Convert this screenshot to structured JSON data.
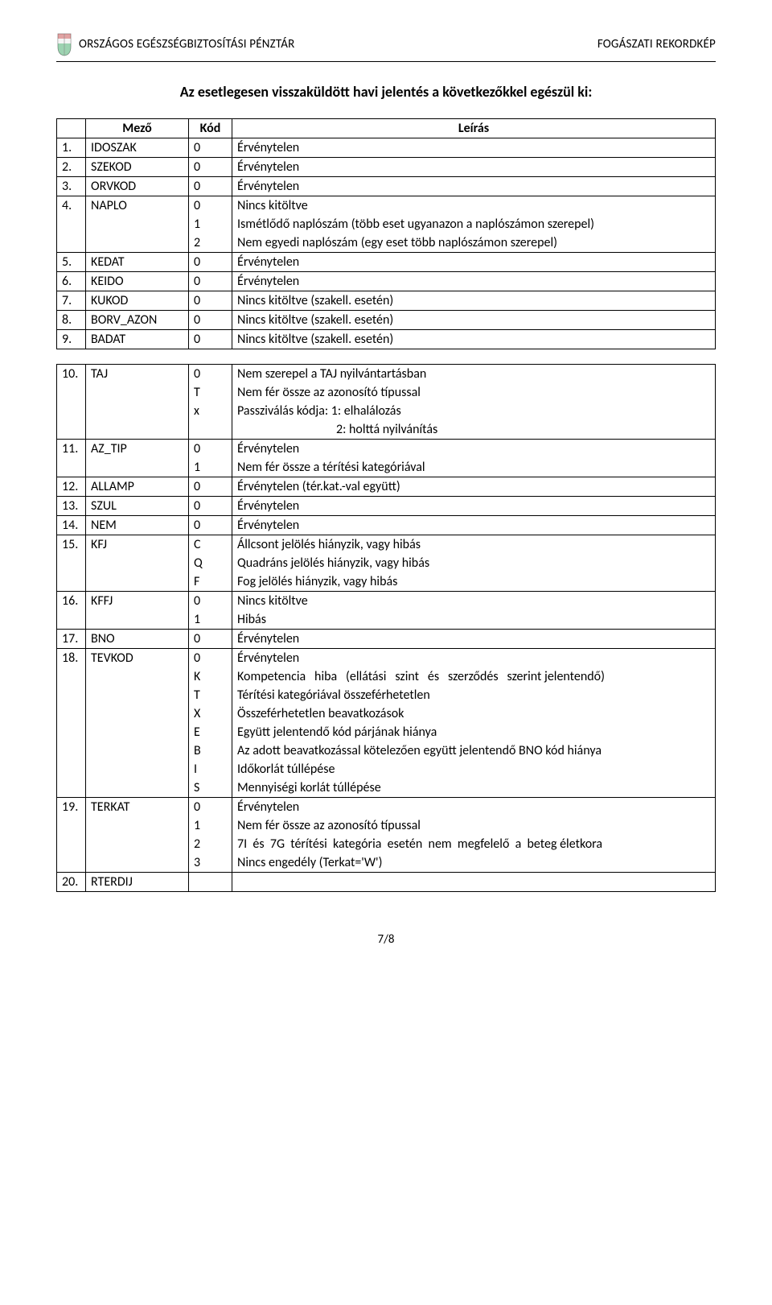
{
  "header": {
    "org_title": "ORSZÁGOS EGÉSZSÉGBIZTOSÍTÁSI PÉNZTÁR",
    "doc_title": "FOGÁSZATI REKORDKÉP"
  },
  "section_title": "Az esetlegesen visszaküldött havi jelentés a következőkkel egészül ki:",
  "page_number": "7/8",
  "table_headers": {
    "empty": "",
    "field": "Mező",
    "code": "Kód",
    "desc": "Leírás"
  },
  "table1": [
    {
      "idx": "1.",
      "field": "IDOSZAK",
      "codes": [
        [
          "0",
          "Érvénytelen"
        ]
      ]
    },
    {
      "idx": "2.",
      "field": "SZEKOD",
      "codes": [
        [
          "0",
          "Érvénytelen"
        ]
      ]
    },
    {
      "idx": "3.",
      "field": "ORVKOD",
      "codes": [
        [
          "0",
          "Érvénytelen"
        ]
      ]
    },
    {
      "idx": "4.",
      "field": "NAPLO",
      "codes": [
        [
          "0",
          "Nincs kitöltve"
        ],
        [
          "1",
          "Ismétlődő naplószám (több eset ugyanazon a naplószámon szerepel)"
        ],
        [
          "2",
          "Nem egyedi naplószám (egy eset több naplószámon szerepel)"
        ]
      ]
    },
    {
      "idx": "5.",
      "field": "KEDAT",
      "codes": [
        [
          "0",
          "Érvénytelen"
        ]
      ]
    },
    {
      "idx": "6.",
      "field": "KEIDO",
      "codes": [
        [
          "0",
          "Érvénytelen"
        ]
      ]
    },
    {
      "idx": "7.",
      "field": "KUKOD",
      "codes": [
        [
          "0",
          "Nincs kitöltve (szakell. esetén)"
        ]
      ]
    },
    {
      "idx": "8.",
      "field": "BORV_AZON",
      "codes": [
        [
          "0",
          "Nincs kitöltve (szakell. esetén)"
        ]
      ]
    },
    {
      "idx": "9.",
      "field": "BADAT",
      "codes": [
        [
          "0",
          "Nincs kitöltve (szakell. esetén)"
        ]
      ]
    }
  ],
  "table2": [
    {
      "idx": "10.",
      "field": "TAJ",
      "codes": [
        [
          "0",
          "Nem szerepel a TAJ nyilvántartásban"
        ],
        [
          "T",
          "Nem fér össze az azonosító típussal"
        ],
        [
          "x",
          "Passziválás kódja: 1: elhalálozás"
        ],
        [
          "",
          "                                  2: holttá nyilvánítás"
        ]
      ]
    },
    {
      "idx": "11.",
      "field": "AZ_TIP",
      "codes": [
        [
          "0",
          "Érvénytelen"
        ],
        [
          "1",
          "Nem fér össze a térítési kategóriával"
        ]
      ]
    },
    {
      "idx": "12.",
      "field": "ALLAMP",
      "codes": [
        [
          "0",
          "Érvénytelen (tér.kat.-val együtt)"
        ]
      ]
    },
    {
      "idx": "13.",
      "field": "SZUL",
      "codes": [
        [
          "0",
          "Érvénytelen"
        ]
      ]
    },
    {
      "idx": "14.",
      "field": "NEM",
      "codes": [
        [
          "0",
          "Érvénytelen"
        ]
      ]
    },
    {
      "idx": "15.",
      "field": "KFJ",
      "codes": [
        [
          "C",
          "Állcsont jelölés hiányzik, vagy hibás"
        ],
        [
          "Q",
          "Quadráns jelölés hiányzik, vagy hibás"
        ],
        [
          "F",
          "Fog jelölés hiányzik, vagy hibás"
        ]
      ]
    },
    {
      "idx": "16.",
      "field": "KFFJ",
      "codes": [
        [
          "0",
          "Nincs kitöltve"
        ],
        [
          "1",
          "Hibás"
        ]
      ]
    },
    {
      "idx": "17.",
      "field": "BNO",
      "codes": [
        [
          "0",
          "Érvénytelen"
        ]
      ]
    },
    {
      "idx": "18.",
      "field": "TEVKOD",
      "codes": [
        [
          "0",
          "Érvénytelen"
        ],
        [
          "K",
          "Kompetencia   hiba   (ellátási   szint   és   szerződés   szerint jelentendő)"
        ],
        [
          "T",
          "Térítési kategóriával összeférhetetlen"
        ],
        [
          "X",
          "Összeférhetetlen beavatkozások"
        ],
        [
          "E",
          "Együtt jelentendő kód párjának hiánya"
        ],
        [
          "B",
          "Az adott beavatkozással kötelezően együtt jelentendő BNO kód hiánya"
        ],
        [
          "I",
          "Időkorlát túllépése"
        ],
        [
          "S",
          "Mennyiségi korlát túllépése"
        ]
      ]
    },
    {
      "idx": "19.",
      "field": "TERKAT",
      "codes": [
        [
          "0",
          "Érvénytelen"
        ],
        [
          "1",
          "Nem fér össze az azonosító típussal"
        ],
        [
          "2",
          "7I  és  7G  térítési  kategória  esetén  nem  megfelelő  a  beteg életkora"
        ],
        [
          "3",
          "Nincs engedély (Terkat='W')"
        ]
      ]
    },
    {
      "idx": "20.",
      "field": "RTERDIJ",
      "codes": [
        [
          "",
          ""
        ]
      ]
    }
  ]
}
